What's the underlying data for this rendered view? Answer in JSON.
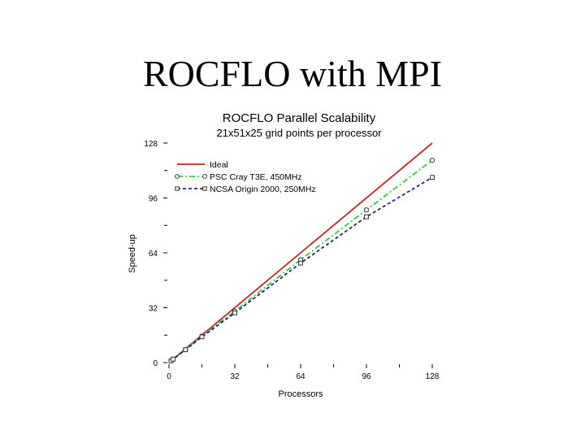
{
  "slide": {
    "title": "ROCFLO with MPI"
  },
  "chart_data": {
    "type": "line",
    "title": "ROCFLO Parallel Scalability",
    "subtitle": "21x51x25 grid points per processor",
    "xlabel": "Processors",
    "ylabel": "Speed-up",
    "xlim": [
      0,
      128
    ],
    "ylim": [
      0,
      128
    ],
    "xticks": [
      0,
      32,
      64,
      96,
      128
    ],
    "yticks": [
      0,
      32,
      64,
      96,
      128
    ],
    "legend_position": "top-left",
    "series": [
      {
        "name": "Ideal",
        "color": "#cc2222",
        "style": "solid",
        "marker": "none",
        "x": [
          1,
          128
        ],
        "y": [
          1,
          128
        ]
      },
      {
        "name": "PSC Cray T3E, 450MHz",
        "color": "#33cc33",
        "style": "dashdot",
        "marker": "circle",
        "x": [
          1,
          2,
          8,
          16,
          32,
          64,
          96,
          128
        ],
        "y": [
          1,
          2,
          7.5,
          15.5,
          30,
          60,
          89,
          118
        ]
      },
      {
        "name": "NCSA Origin 2000, 250MHz",
        "color": "#22228a",
        "style": "dashed",
        "marker": "square",
        "x": [
          1,
          2,
          8,
          16,
          32,
          64,
          96,
          128
        ],
        "y": [
          1,
          2,
          7.5,
          15,
          29,
          58,
          85,
          108
        ]
      }
    ]
  }
}
